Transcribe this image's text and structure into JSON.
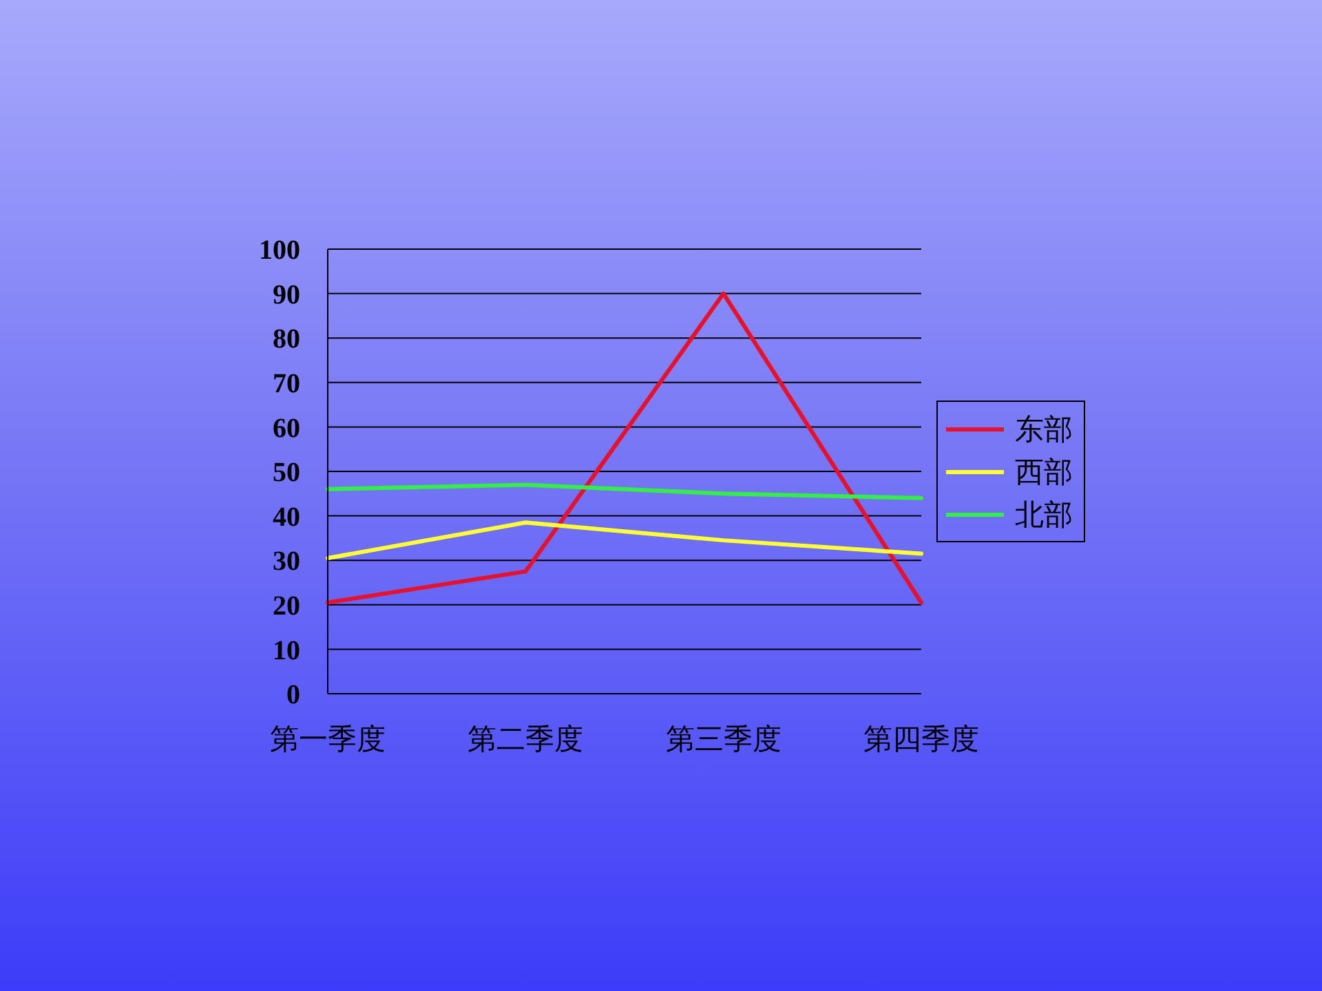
{
  "chart_data": {
    "type": "line",
    "categories": [
      "第一季度",
      "第二季度",
      "第三季度",
      "第四季度"
    ],
    "series": [
      {
        "name": "东部",
        "color": "#e8102a",
        "values": [
          20.5,
          27.5,
          90,
          20.5
        ]
      },
      {
        "name": "西部",
        "color": "#ffff33",
        "values": [
          30.5,
          38.5,
          34.5,
          31.5
        ]
      },
      {
        "name": "北部",
        "color": "#33ee44",
        "values": [
          46,
          47,
          45,
          44
        ]
      }
    ],
    "ylim": [
      0,
      100
    ],
    "yticks": [
      0,
      10,
      20,
      30,
      40,
      50,
      60,
      70,
      80,
      90,
      100
    ],
    "grid": "y",
    "legend": "right",
    "line_style": "solid"
  }
}
